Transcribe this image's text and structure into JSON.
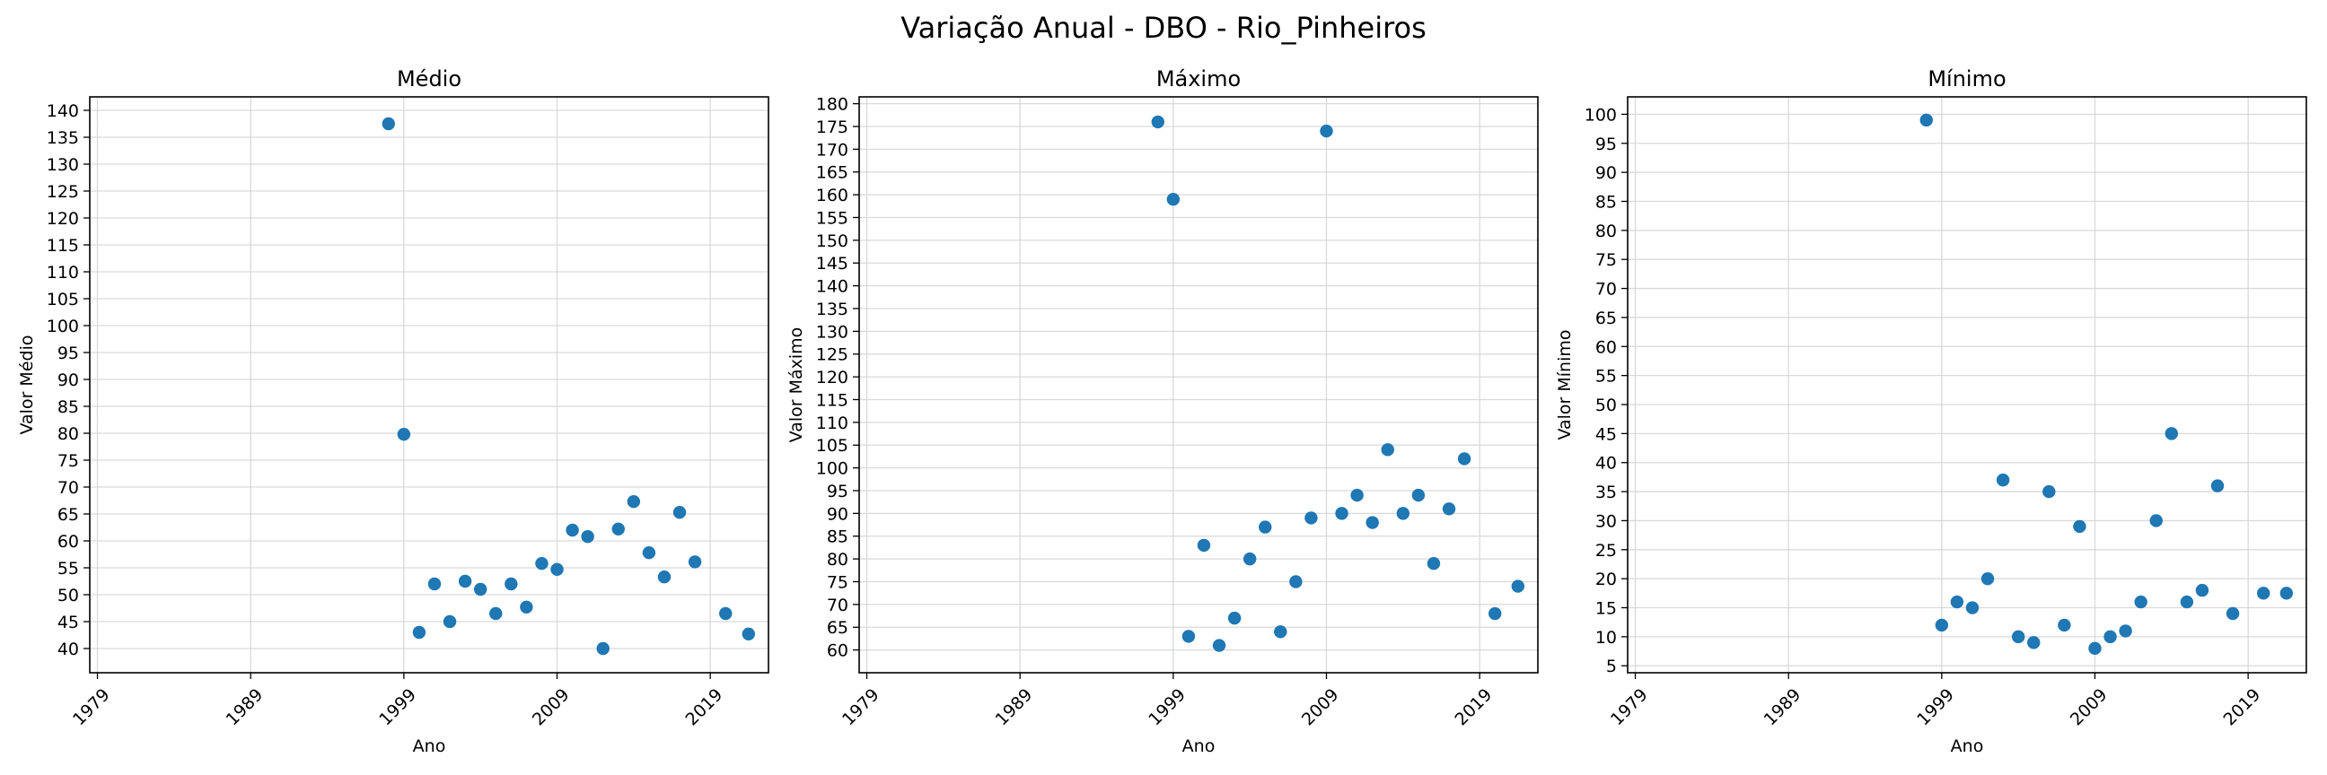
{
  "figure": {
    "title": "Variação Anual - DBO - Rio_Pinheiros"
  },
  "chart_data": [
    {
      "type": "scatter",
      "title": "Médio",
      "xlabel": "Ano",
      "ylabel": "Valor Médio",
      "xlim": [
        1978.5,
        2022.8
      ],
      "xticks": [
        1979,
        1989,
        1999,
        2009,
        2019
      ],
      "ylim": [
        35.5,
        142.5
      ],
      "yticks": [
        40,
        45,
        50,
        55,
        60,
        65,
        70,
        75,
        80,
        85,
        90,
        95,
        100,
        105,
        110,
        115,
        120,
        125,
        130,
        135,
        140
      ],
      "grid": true,
      "color": "#1f77b4",
      "points": [
        {
          "x": 1998,
          "y": 137.5
        },
        {
          "x": 1999,
          "y": 79.8
        },
        {
          "x": 2000,
          "y": 43
        },
        {
          "x": 2001,
          "y": 52
        },
        {
          "x": 2002,
          "y": 45
        },
        {
          "x": 2003,
          "y": 52.5
        },
        {
          "x": 2004,
          "y": 51
        },
        {
          "x": 2005,
          "y": 46.5
        },
        {
          "x": 2006,
          "y": 52
        },
        {
          "x": 2007,
          "y": 47.7
        },
        {
          "x": 2008,
          "y": 55.8
        },
        {
          "x": 2009,
          "y": 54.7
        },
        {
          "x": 2010,
          "y": 62
        },
        {
          "x": 2011,
          "y": 60.8
        },
        {
          "x": 2012,
          "y": 40
        },
        {
          "x": 2013,
          "y": 62.2
        },
        {
          "x": 2014,
          "y": 67.3
        },
        {
          "x": 2015,
          "y": 57.8
        },
        {
          "x": 2016,
          "y": 53.3
        },
        {
          "x": 2017,
          "y": 65.3
        },
        {
          "x": 2018,
          "y": 56.1
        },
        {
          "x": 2020,
          "y": 46.5
        },
        {
          "x": 2021.5,
          "y": 42.7
        }
      ]
    },
    {
      "type": "scatter",
      "title": "Máximo",
      "xlabel": "Ano",
      "ylabel": "Valor Máximo",
      "xlim": [
        1978.5,
        2022.8
      ],
      "xticks": [
        1979,
        1989,
        1999,
        2009,
        2019
      ],
      "ylim": [
        55,
        181.5
      ],
      "yticks": [
        60,
        65,
        70,
        75,
        80,
        85,
        90,
        95,
        100,
        105,
        110,
        115,
        120,
        125,
        130,
        135,
        140,
        145,
        150,
        155,
        160,
        165,
        170,
        175,
        180
      ],
      "grid": true,
      "color": "#1f77b4",
      "points": [
        {
          "x": 1998,
          "y": 176
        },
        {
          "x": 1999,
          "y": 159
        },
        {
          "x": 2000,
          "y": 63
        },
        {
          "x": 2001,
          "y": 83
        },
        {
          "x": 2002,
          "y": 61
        },
        {
          "x": 2003,
          "y": 67
        },
        {
          "x": 2004,
          "y": 80
        },
        {
          "x": 2005,
          "y": 87
        },
        {
          "x": 2006,
          "y": 64
        },
        {
          "x": 2007,
          "y": 75
        },
        {
          "x": 2008,
          "y": 89
        },
        {
          "x": 2009,
          "y": 174
        },
        {
          "x": 2010,
          "y": 90
        },
        {
          "x": 2011,
          "y": 94
        },
        {
          "x": 2012,
          "y": 88
        },
        {
          "x": 2013,
          "y": 104
        },
        {
          "x": 2014,
          "y": 90
        },
        {
          "x": 2015,
          "y": 94
        },
        {
          "x": 2016,
          "y": 79
        },
        {
          "x": 2017,
          "y": 91
        },
        {
          "x": 2018,
          "y": 102
        },
        {
          "x": 2020,
          "y": 68
        },
        {
          "x": 2021.5,
          "y": 74
        }
      ]
    },
    {
      "type": "scatter",
      "title": "Mínimo",
      "xlabel": "Ano",
      "ylabel": "Valor Mínimo",
      "xlim": [
        1978.5,
        2022.8
      ],
      "xticks": [
        1979,
        1989,
        1999,
        2009,
        2019
      ],
      "ylim": [
        3.8,
        103
      ],
      "yticks": [
        5,
        10,
        15,
        20,
        25,
        30,
        35,
        40,
        45,
        50,
        55,
        60,
        65,
        70,
        75,
        80,
        85,
        90,
        95,
        100
      ],
      "grid": true,
      "color": "#1f77b4",
      "points": [
        {
          "x": 1998,
          "y": 99
        },
        {
          "x": 1999,
          "y": 12
        },
        {
          "x": 2000,
          "y": 16
        },
        {
          "x": 2001,
          "y": 15
        },
        {
          "x": 2002,
          "y": 20
        },
        {
          "x": 2003,
          "y": 37
        },
        {
          "x": 2004,
          "y": 10
        },
        {
          "x": 2005,
          "y": 9
        },
        {
          "x": 2006,
          "y": 35
        },
        {
          "x": 2007,
          "y": 12
        },
        {
          "x": 2008,
          "y": 29
        },
        {
          "x": 2009,
          "y": 8
        },
        {
          "x": 2010,
          "y": 10
        },
        {
          "x": 2011,
          "y": 11
        },
        {
          "x": 2012,
          "y": 16
        },
        {
          "x": 2013,
          "y": 30
        },
        {
          "x": 2014,
          "y": 45
        },
        {
          "x": 2015,
          "y": 16
        },
        {
          "x": 2016,
          "y": 18
        },
        {
          "x": 2017,
          "y": 36
        },
        {
          "x": 2018,
          "y": 14
        },
        {
          "x": 2020,
          "y": 17.5
        },
        {
          "x": 2021.5,
          "y": 17.5
        }
      ]
    }
  ]
}
